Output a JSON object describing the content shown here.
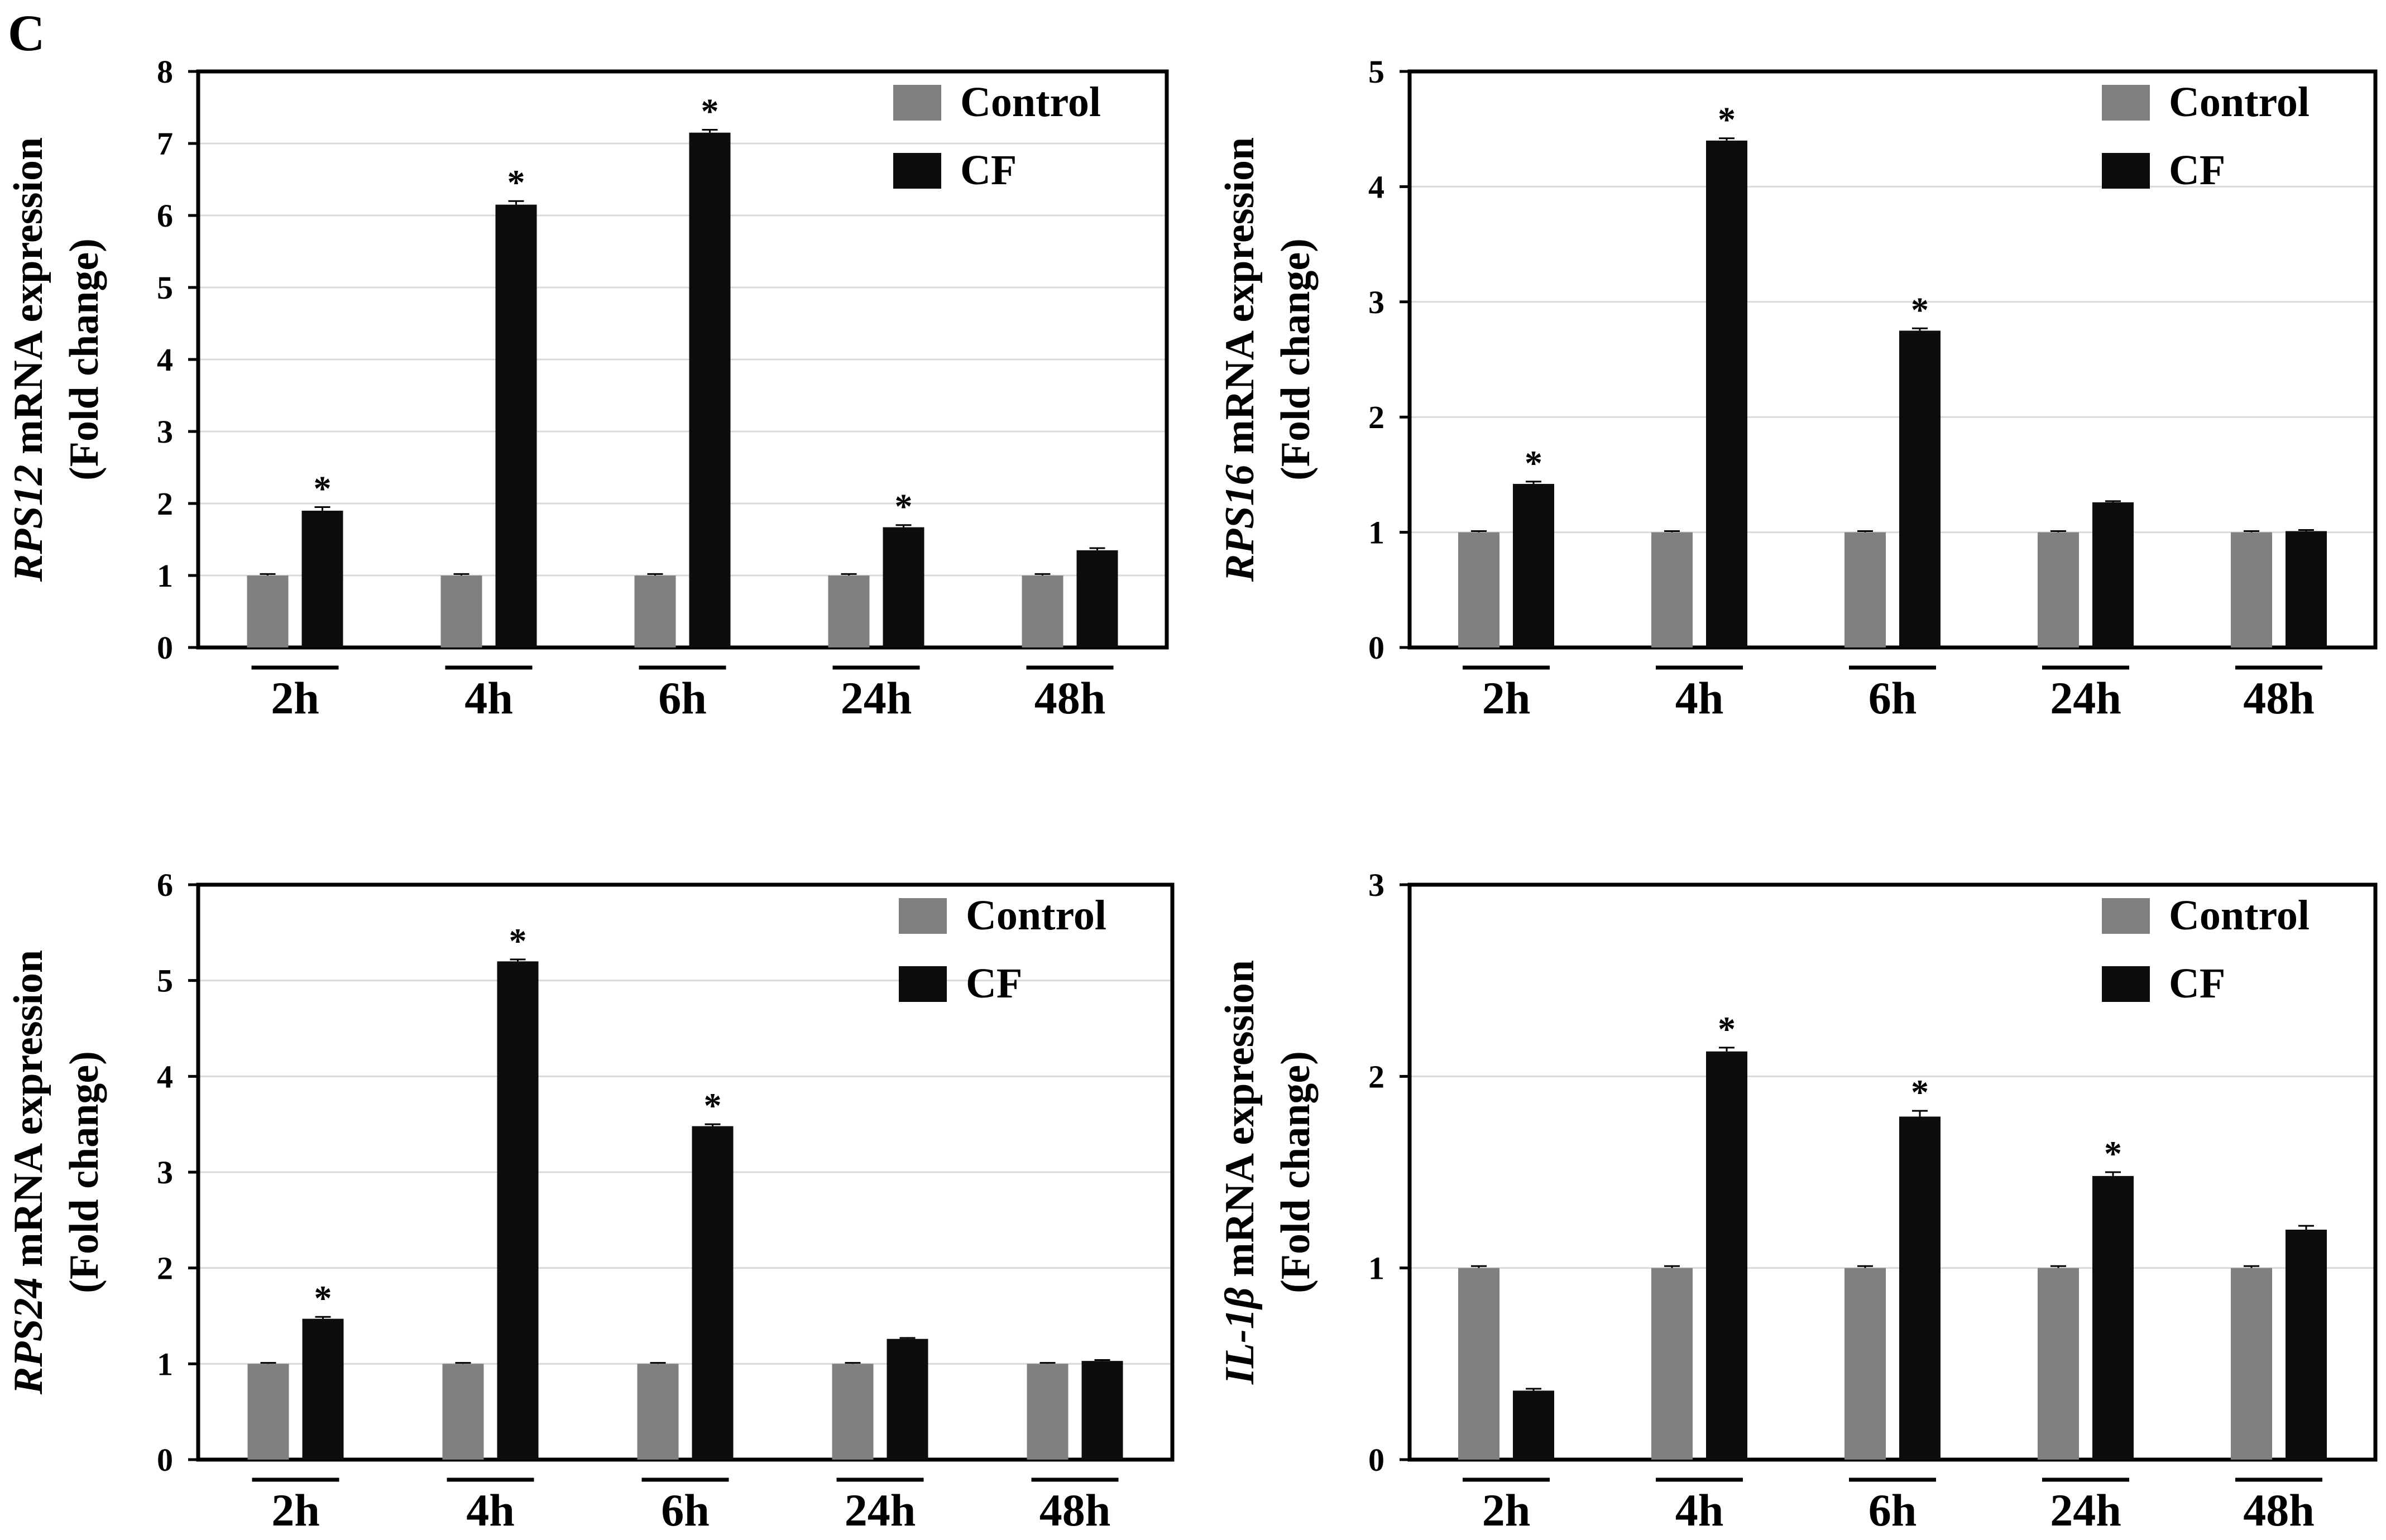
{
  "panel_letter": "C",
  "colors": {
    "control": "#808080",
    "cf": "#0d0d0d",
    "grid": "#d9d9d9",
    "axis": "#000000"
  },
  "chart_data": [
    {
      "type": "bar",
      "categories": [
        "2h",
        "4h",
        "6h",
        "24h",
        "48h"
      ],
      "ylabel_gene": "RPS12",
      "ylabel_rest": " mRNA expression",
      "ylabel_line2": "(Fold change)",
      "ylim": [
        0,
        8
      ],
      "yticks": [
        "0",
        "1",
        "2",
        "3",
        "4",
        "5",
        "6",
        "7",
        "8"
      ],
      "grid": true,
      "legend": "top-right",
      "series": [
        {
          "name": "Control",
          "values": [
            1.0,
            1.0,
            1.0,
            1.0,
            1.0
          ],
          "errors": [
            0.02,
            0.02,
            0.02,
            0.02,
            0.02
          ]
        },
        {
          "name": "CF",
          "values": [
            1.9,
            6.15,
            7.15,
            1.67,
            1.35
          ],
          "errors": [
            0.05,
            0.05,
            0.04,
            0.03,
            0.03
          ]
        }
      ],
      "significance": [
        "*",
        "*",
        "*",
        "*",
        ""
      ]
    },
    {
      "type": "bar",
      "categories": [
        "2h",
        "4h",
        "6h",
        "24h",
        "48h"
      ],
      "ylabel_gene": "RPS16",
      "ylabel_rest": " mRNA expression",
      "ylabel_line2": "(Fold change)",
      "ylim": [
        0,
        5
      ],
      "yticks": [
        "0",
        "1",
        "2",
        "3",
        "4",
        "5"
      ],
      "grid": true,
      "legend": "top-right",
      "series": [
        {
          "name": "Control",
          "values": [
            1.0,
            1.0,
            1.0,
            1.0,
            1.0
          ],
          "errors": [
            0.01,
            0.01,
            0.01,
            0.01,
            0.01
          ]
        },
        {
          "name": "CF",
          "values": [
            1.42,
            4.4,
            2.75,
            1.26,
            1.01
          ],
          "errors": [
            0.02,
            0.02,
            0.02,
            0.01,
            0.01
          ]
        }
      ],
      "significance": [
        "*",
        "*",
        "*",
        "",
        ""
      ]
    },
    {
      "type": "bar",
      "categories": [
        "2h",
        "4h",
        "6h",
        "24h",
        "48h"
      ],
      "ylabel_gene": "RPS24",
      "ylabel_rest": " mRNA expression",
      "ylabel_line2": "(Fold change)",
      "ylim": [
        0,
        6
      ],
      "yticks": [
        "0",
        "1",
        "2",
        "3",
        "4",
        "5",
        "6"
      ],
      "grid": true,
      "legend": "top-right",
      "series": [
        {
          "name": "Control",
          "values": [
            1.0,
            1.0,
            1.0,
            1.0,
            1.0
          ],
          "errors": [
            0.01,
            0.01,
            0.01,
            0.01,
            0.01
          ]
        },
        {
          "name": "CF",
          "values": [
            1.47,
            5.2,
            3.48,
            1.26,
            1.03
          ],
          "errors": [
            0.02,
            0.02,
            0.02,
            0.01,
            0.01
          ]
        }
      ],
      "significance": [
        "*",
        "*",
        "*",
        "",
        ""
      ]
    },
    {
      "type": "bar",
      "categories": [
        "2h",
        "4h",
        "6h",
        "24h",
        "48h"
      ],
      "ylabel_gene": "IL-1β",
      "ylabel_rest": " mRNA expression",
      "ylabel_line2": "(Fold change)",
      "ylim": [
        0,
        3
      ],
      "yticks": [
        "0",
        "1",
        "2",
        "3"
      ],
      "grid": true,
      "legend": "top-right",
      "series": [
        {
          "name": "Control",
          "values": [
            1.0,
            1.0,
            1.0,
            1.0,
            1.0
          ],
          "errors": [
            0.01,
            0.01,
            0.01,
            0.01,
            0.01
          ]
        },
        {
          "name": "CF",
          "values": [
            0.36,
            2.13,
            1.79,
            1.48,
            1.2
          ],
          "errors": [
            0.01,
            0.02,
            0.03,
            0.02,
            0.02
          ]
        }
      ],
      "significance": [
        "",
        "*",
        "*",
        "*",
        ""
      ]
    }
  ]
}
